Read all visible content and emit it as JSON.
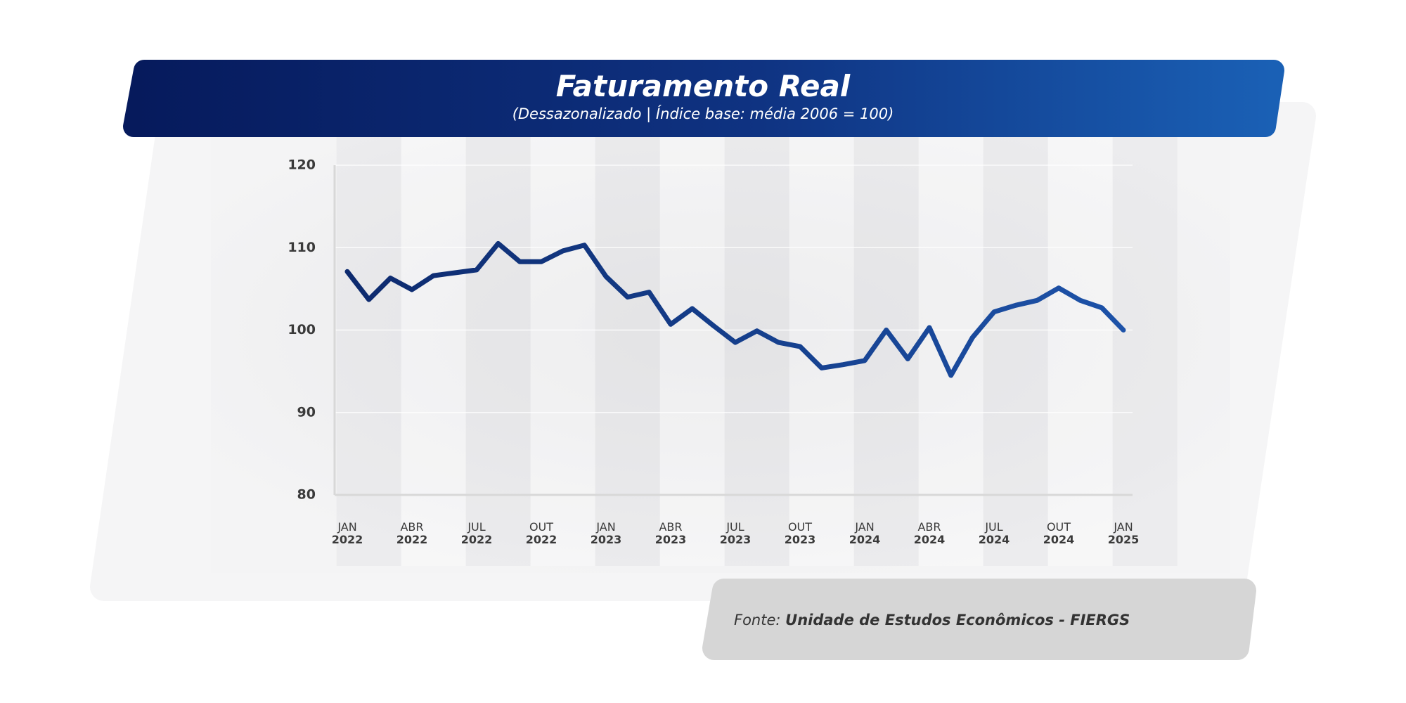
{
  "chart_data": {
    "type": "line",
    "title": "Faturamento Real",
    "subtitle": "(Dessazonalizado | Índice base: média 2006 = 100)",
    "source_label": "Fonte:",
    "source_text": "Unidade de Estudos Econômicos - FIERGS",
    "categories": [
      "JAN 2022",
      null,
      null,
      "ABR 2022",
      null,
      null,
      "JUL 2022",
      null,
      null,
      "OUT 2022",
      null,
      null,
      "JAN 2023",
      null,
      null,
      "ABR 2023",
      null,
      null,
      "JUL 2023",
      null,
      null,
      "OUT 2023",
      null,
      null,
      "JAN 2024",
      null,
      null,
      "ABR 2024",
      null,
      null,
      "JUL 2024",
      null,
      null,
      "OUT 2024",
      null,
      null,
      "JAN 2025"
    ],
    "series": [
      {
        "name": "Faturamento Real",
        "color": [
          "#0d2a6e",
          "#1d52a8"
        ],
        "values": [
          107.1,
          103.7,
          106.3,
          104.9,
          106.6,
          106.95,
          107.3,
          110.5,
          108.3,
          108.3,
          109.6,
          110.3,
          106.5,
          104.0,
          104.6,
          100.7,
          102.6,
          100.5,
          98.5,
          99.9,
          98.5,
          98.0,
          95.4,
          95.8,
          96.3,
          100.0,
          96.5,
          100.3,
          94.5,
          99.1,
          102.2,
          103.0,
          103.6,
          105.1,
          103.6,
          102.7,
          100.0
        ]
      }
    ],
    "ylim": [
      80,
      120
    ],
    "yticks": [
      80,
      90,
      100,
      110,
      120
    ],
    "grid": true
  }
}
